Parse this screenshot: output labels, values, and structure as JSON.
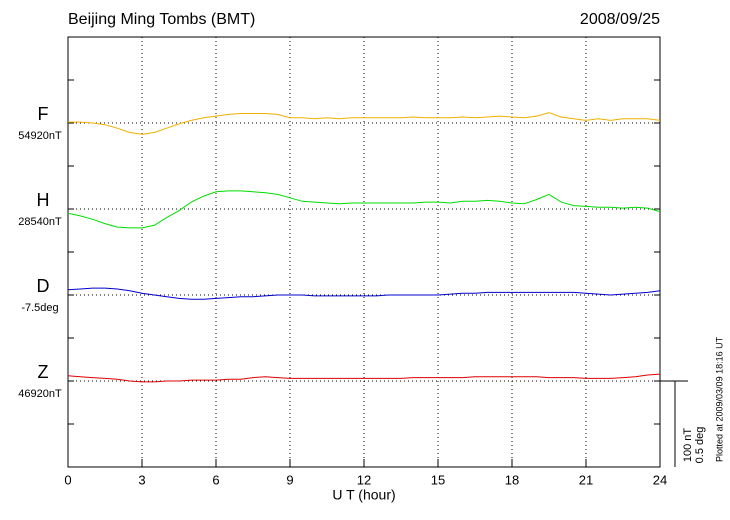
{
  "chart_data": {
    "type": "line",
    "title": "Beijing Ming Tombs (BMT)",
    "date": "2008/09/25",
    "x_label": "U T (hour)",
    "footnote": "Plotted at 2009/03/09 18:16 UT",
    "xlim": [
      0,
      24
    ],
    "xticks": [
      0,
      3,
      6,
      9,
      12,
      15,
      18,
      21,
      24
    ],
    "grid": true,
    "scale_bar": {
      "value": 100,
      "label": "100 nT"
    },
    "scale_bar2": {
      "value": 0.5,
      "label": "0.5 deg"
    },
    "x": [
      0,
      0.5,
      1,
      1.5,
      2,
      2.5,
      3,
      3.5,
      4,
      4.5,
      5,
      5.5,
      6,
      6.5,
      7,
      7.5,
      8,
      8.5,
      9,
      9.5,
      10,
      10.5,
      11,
      11.5,
      12,
      12.5,
      13,
      13.5,
      14,
      14.5,
      15,
      15.5,
      16,
      16.5,
      17,
      17.5,
      18,
      18.5,
      19,
      19.5,
      20,
      20.5,
      21,
      21.5,
      22,
      22.5,
      23,
      23.5,
      24
    ],
    "series": [
      {
        "name": "F",
        "color": "#f0b000",
        "baseline": {
          "value": 54920,
          "label": "54920nT"
        },
        "values": [
          54921,
          54921,
          54920,
          54918,
          54914,
          54909,
          54907,
          54909,
          54914,
          54919,
          54923,
          54926,
          54928,
          54930,
          54931,
          54931,
          54931,
          54930,
          54926,
          54926,
          54925,
          54926,
          54925,
          54926,
          54926,
          54926,
          54926,
          54926,
          54927,
          54926,
          54926,
          54926,
          54927,
          54926,
          54927,
          54928,
          54927,
          54926,
          54928,
          54932,
          54927,
          54925,
          54923,
          54925,
          54923,
          54925,
          54925,
          54925,
          54923
        ]
      },
      {
        "name": "H",
        "color": "#00dd00",
        "baseline": {
          "value": 28540,
          "label": "28540nT"
        },
        "values": [
          28535,
          28532,
          28528,
          28523,
          28519,
          28518,
          28518,
          28521,
          28530,
          28538,
          28548,
          28555,
          28560,
          28561,
          28561,
          28560,
          28559,
          28557,
          28553,
          28549,
          28548,
          28547,
          28546,
          28547,
          28547,
          28547,
          28547,
          28547,
          28547,
          28548,
          28548,
          28547,
          28549,
          28549,
          28550,
          28549,
          28547,
          28546,
          28551,
          28557,
          28548,
          28544,
          28543,
          28542,
          28542,
          28541,
          28542,
          28541,
          28537
        ]
      },
      {
        "name": "D",
        "color": "#0000cc",
        "axis": "y2",
        "baseline": {
          "value": -7.5,
          "label": "-7.5deg"
        },
        "values": [
          -7.47,
          -7.465,
          -7.46,
          -7.46,
          -7.465,
          -7.475,
          -7.49,
          -7.5,
          -7.51,
          -7.52,
          -7.525,
          -7.525,
          -7.52,
          -7.515,
          -7.51,
          -7.51,
          -7.505,
          -7.5,
          -7.5,
          -7.5,
          -7.505,
          -7.505,
          -7.505,
          -7.505,
          -7.505,
          -7.505,
          -7.5,
          -7.5,
          -7.5,
          -7.5,
          -7.5,
          -7.495,
          -7.49,
          -7.49,
          -7.485,
          -7.485,
          -7.485,
          -7.485,
          -7.485,
          -7.485,
          -7.485,
          -7.485,
          -7.49,
          -7.495,
          -7.5,
          -7.495,
          -7.49,
          -7.485,
          -7.475
        ]
      },
      {
        "name": "Z",
        "color": "#dd0000",
        "baseline": {
          "value": 46920,
          "label": "46920nT"
        },
        "values": [
          46926,
          46925,
          46924,
          46923,
          46922,
          46920,
          46919,
          46919,
          46920,
          46920,
          46921,
          46921,
          46921,
          46922,
          46922,
          46924,
          46925,
          46924,
          46923,
          46923,
          46923,
          46923,
          46923,
          46923,
          46923,
          46923,
          46923,
          46923,
          46924,
          46924,
          46924,
          46924,
          46924,
          46925,
          46925,
          46925,
          46925,
          46925,
          46925,
          46924,
          46924,
          46924,
          46923,
          46923,
          46923,
          46924,
          46925,
          46927,
          46928
        ]
      }
    ]
  }
}
